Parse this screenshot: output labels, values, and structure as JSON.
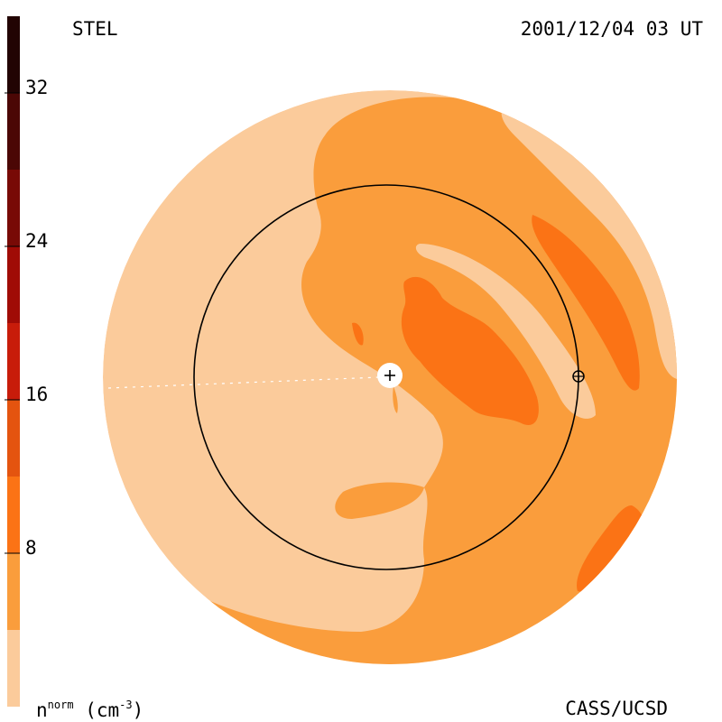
{
  "header": {
    "observatory": "STEL",
    "timestamp": "2001/12/04 03 UT"
  },
  "footer": {
    "credit": "CASS/UCSD"
  },
  "colorbar": {
    "quantity": "n",
    "quantity_superscript": "norm",
    "unit_open": "(cm",
    "unit_exponent": "-3",
    "unit_close": ")",
    "tick_labels": [
      "8",
      "16",
      "24",
      "32"
    ],
    "tick_values": [
      8,
      16,
      24,
      32
    ],
    "range": [
      0,
      36
    ],
    "levels": [
      {
        "from": 0,
        "to": 4,
        "color": "#fbcb9b"
      },
      {
        "from": 4,
        "to": 8,
        "color": "#fa9d3c"
      },
      {
        "from": 8,
        "to": 12,
        "color": "#fb7315"
      },
      {
        "from": 12,
        "to": 16,
        "color": "#e4540f"
      },
      {
        "from": 16,
        "to": 20,
        "color": "#c81c0a"
      },
      {
        "from": 20,
        "to": 24,
        "color": "#a00b06"
      },
      {
        "from": 24,
        "to": 28,
        "color": "#780a06"
      },
      {
        "from": 28,
        "to": 32,
        "color": "#4b0705"
      },
      {
        "from": 32,
        "to": 36,
        "color": "#220403"
      }
    ]
  },
  "map": {
    "sun_marker": "sun-plus-icon",
    "earth_marker": "earth-symbol-icon",
    "orbit": "earth-orbit-circle"
  }
}
